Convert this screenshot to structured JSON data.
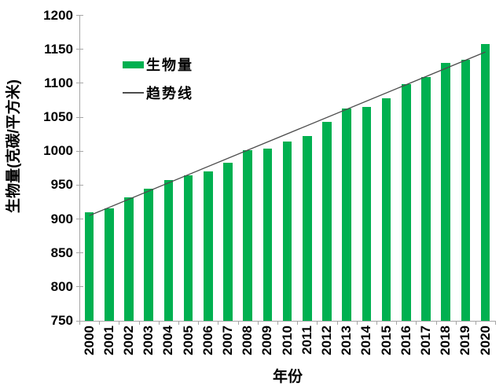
{
  "chart_data": {
    "type": "bar",
    "title": "",
    "categories": [
      "2000",
      "2001",
      "2002",
      "2003",
      "2004",
      "2005",
      "2006",
      "2007",
      "2008",
      "2009",
      "2010",
      "2011",
      "2012",
      "2013",
      "2014",
      "2015",
      "2016",
      "2017",
      "2018",
      "2019",
      "2020"
    ],
    "series": [
      {
        "name": "生物量",
        "values": [
          910,
          916,
          932,
          945,
          957,
          964,
          970,
          983,
          1001,
          1004,
          1014,
          1022,
          1043,
          1063,
          1065,
          1078,
          1099,
          1109,
          1130,
          1135,
          1158
        ]
      }
    ],
    "trend": {
      "name": "趋势线",
      "start_value": 905,
      "end_value": 1146
    },
    "xlabel": "年份",
    "ylabel": "生物量(克碳/平方米)",
    "ylim": [
      750,
      1200
    ],
    "ytick_step": 50,
    "yticks": [
      750,
      800,
      850,
      900,
      950,
      1000,
      1050,
      1100,
      1150,
      1200
    ],
    "grid": false,
    "legend_position": "inside-top-left"
  },
  "colors": {
    "bar": "#00B050",
    "trend_line": "#4d4d4d",
    "axis": "#a6a6a6",
    "text": "#000000",
    "background": "#ffffff"
  }
}
